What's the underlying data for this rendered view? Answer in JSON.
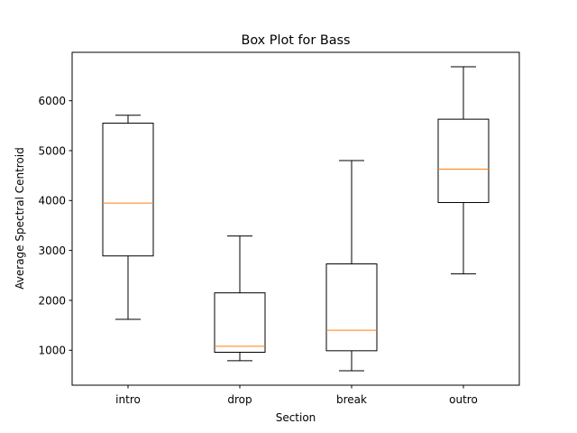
{
  "chart_data": {
    "type": "box",
    "title": "Box Plot for Bass",
    "xlabel": "Section",
    "ylabel": "Average Spectral Centroid",
    "categories": [
      "intro",
      "drop",
      "break",
      "outro"
    ],
    "boxes": [
      {
        "whisker_low": 1620,
        "q1": 2890,
        "median": 3950,
        "q3": 5550,
        "whisker_high": 5710
      },
      {
        "whisker_low": 790,
        "q1": 960,
        "median": 1080,
        "q3": 2150,
        "whisker_high": 3290
      },
      {
        "whisker_low": 590,
        "q1": 990,
        "median": 1400,
        "q3": 2730,
        "whisker_high": 4800
      },
      {
        "whisker_low": 2530,
        "q1": 3960,
        "median": 4630,
        "q3": 5630,
        "whisker_high": 6680
      }
    ],
    "ylim": [
      300,
      6970
    ],
    "yticks": [
      1000,
      2000,
      3000,
      4000,
      5000,
      6000
    ],
    "grid": false,
    "colors": {
      "box": "#000000",
      "median": "#ff7f0e"
    }
  }
}
